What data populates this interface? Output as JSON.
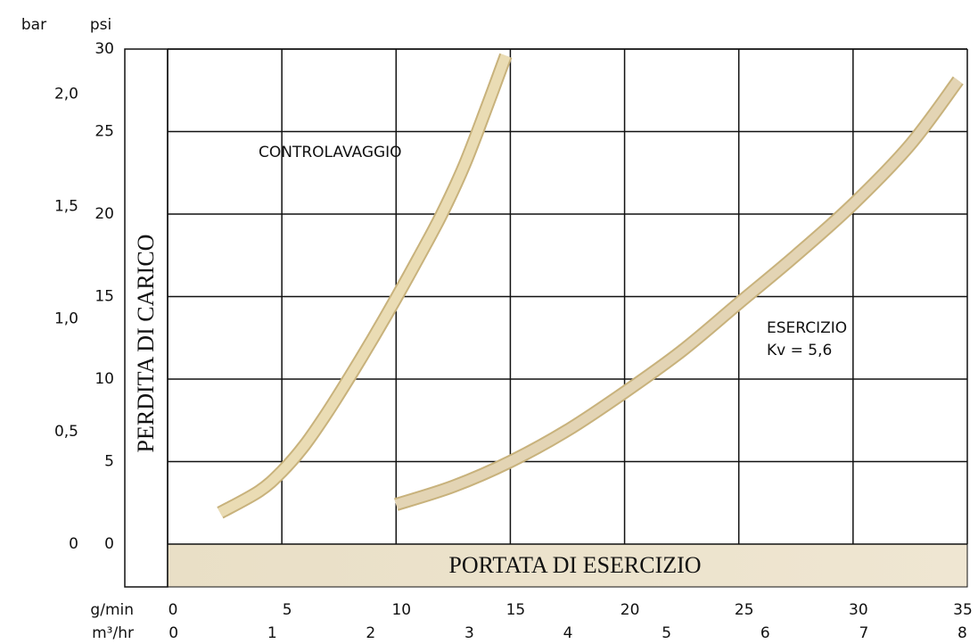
{
  "chart_data": {
    "type": "line",
    "y_axis_label": "PERDITA DI CARICO",
    "x_axis_label": "PORTATA DI ESERCIZIO",
    "y_unit": "psi",
    "y2_unit": "bar",
    "x_unit": "g/min",
    "x2_unit": "m³/hr",
    "xlim": [
      0,
      35
    ],
    "xticks": [
      0,
      5,
      10,
      15,
      20,
      25,
      30,
      35
    ],
    "x2lim": [
      -0.06,
      8.05
    ],
    "x2ticks": [
      0,
      1,
      2,
      3,
      4,
      5,
      6,
      7,
      8
    ],
    "ylim": [
      0,
      30
    ],
    "yticks": [
      0,
      5,
      10,
      15,
      20,
      25,
      30
    ],
    "y2lim": [
      0,
      2.2
    ],
    "y2ticks": [
      0,
      {
        "value": 0.5,
        "label": "0,5"
      },
      {
        "value": 1,
        "label": "1,0"
      },
      {
        "value": 1.5,
        "label": "1,5"
      },
      {
        "value": 2,
        "label": "2,0"
      }
    ],
    "grid": true,
    "series": [
      {
        "name": "CONTROLAVAGGIO",
        "color": "#eadcb4",
        "x": [
          2.3,
          4,
          5,
          6,
          7,
          8,
          9,
          10,
          11,
          12,
          13,
          14,
          14.8
        ],
        "values": [
          1.9,
          3.2,
          4.4,
          6,
          8,
          10.2,
          12.5,
          14.9,
          17.4,
          20.0,
          23.0,
          26.6,
          29.6
        ]
      },
      {
        "name": "ESERCIZIO",
        "color": "#e3d4b4",
        "x": [
          10,
          12.5,
          15,
          17.5,
          20,
          22.5,
          25,
          27.5,
          30,
          32.5,
          34.6
        ],
        "values": [
          2.4,
          3.5,
          5.0,
          6.9,
          9.2,
          11.7,
          14.6,
          17.5,
          20.6,
          24.2,
          28.1
        ]
      }
    ],
    "annotations": [
      "Kv = 5,6"
    ]
  }
}
